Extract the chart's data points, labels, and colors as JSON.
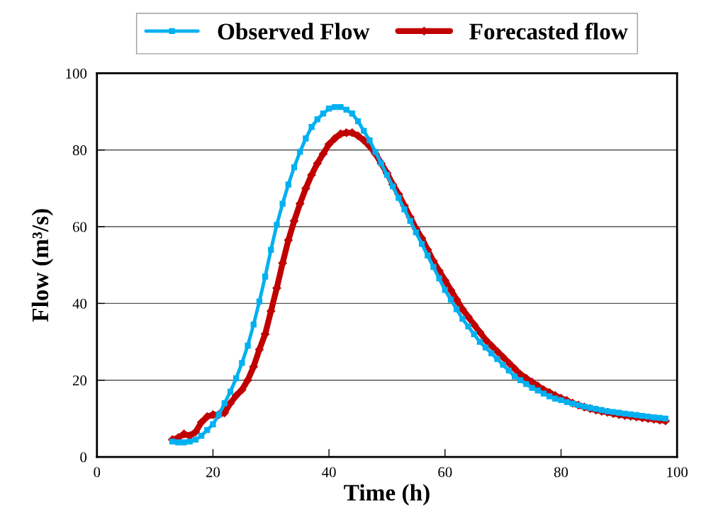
{
  "chart_data": {
    "type": "line",
    "xlabel": "Time (h)",
    "ylabel": "Flow (m³/s)",
    "xlim": [
      0,
      100
    ],
    "xticks": [
      0,
      20,
      40,
      60,
      80,
      100
    ],
    "ylim": [
      0,
      100
    ],
    "yticks": [
      0,
      20,
      40,
      60,
      80,
      100
    ],
    "grid": "y",
    "legend": "top",
    "line_style": "solid",
    "x": [
      13,
      14,
      15,
      16,
      17,
      18,
      19,
      20,
      21,
      22,
      23,
      24,
      25,
      26,
      27,
      28,
      29,
      30,
      31,
      32,
      33,
      34,
      35,
      36,
      37,
      38,
      39,
      40,
      41,
      42,
      43,
      44,
      45,
      46,
      47,
      48,
      49,
      50,
      51,
      52,
      53,
      54,
      55,
      56,
      57,
      58,
      59,
      60,
      61,
      62,
      63,
      64,
      65,
      66,
      67,
      68,
      69,
      70,
      71,
      72,
      73,
      74,
      75,
      76,
      77,
      78,
      79,
      80,
      81,
      82,
      83,
      84,
      85,
      86,
      87,
      88,
      89,
      90,
      91,
      92,
      93,
      94,
      95,
      96,
      97,
      98
    ],
    "series": [
      {
        "name": "Observed Flow",
        "color": "#00b0f0",
        "marker": "square",
        "values": [
          4,
          3.8,
          3.8,
          4,
          4.5,
          5.5,
          7,
          8.5,
          11,
          14,
          17,
          20.5,
          24.5,
          29,
          34.5,
          40.5,
          47,
          54,
          60.5,
          66,
          71,
          75.5,
          79.5,
          83,
          86,
          88,
          89.5,
          90.8,
          91.2,
          91.2,
          90.5,
          89.5,
          87.5,
          85,
          82.5,
          79.5,
          76.5,
          73.5,
          70.5,
          67.5,
          64.5,
          61.5,
          58.5,
          55.5,
          52.5,
          49.5,
          46.5,
          43.5,
          41,
          38.5,
          36,
          34,
          32,
          30,
          28.5,
          27,
          25.5,
          24,
          22.5,
          21,
          20,
          19,
          18,
          17.3,
          16.5,
          15.8,
          15.2,
          14.8,
          14.3,
          13.9,
          13.5,
          13.1,
          12.8,
          12.5,
          12.2,
          11.9,
          11.7,
          11.5,
          11.3,
          11.1,
          10.9,
          10.7,
          10.5,
          10.3,
          10.2,
          10
        ]
      },
      {
        "name": "Forecasted flow",
        "color": "#c00000",
        "marker": "diamond",
        "values": [
          4.5,
          5,
          6,
          5.5,
          6.5,
          9,
          10.5,
          11,
          11,
          11.5,
          14,
          16,
          17.5,
          20,
          23.5,
          28,
          32,
          38,
          44,
          50.5,
          56.5,
          61.5,
          66,
          70,
          73.5,
          76.5,
          79,
          81.5,
          83,
          84.2,
          84.5,
          84.5,
          83.7,
          82.5,
          81,
          79,
          76.5,
          74,
          71,
          68.5,
          65.5,
          62.5,
          59.5,
          57,
          54,
          51,
          48.5,
          46,
          43.5,
          41,
          38.5,
          36.5,
          34.5,
          32.5,
          30.5,
          29,
          27.5,
          26,
          24.5,
          23,
          21.5,
          20.5,
          19.5,
          18.5,
          17.5,
          16.8,
          16,
          15.3,
          14.7,
          14,
          13.5,
          13,
          12.6,
          12.2,
          11.9,
          11.6,
          11.3,
          11,
          10.8,
          10.6,
          10.4,
          10.2,
          10,
          9.8,
          9.6,
          9.4
        ]
      }
    ]
  }
}
